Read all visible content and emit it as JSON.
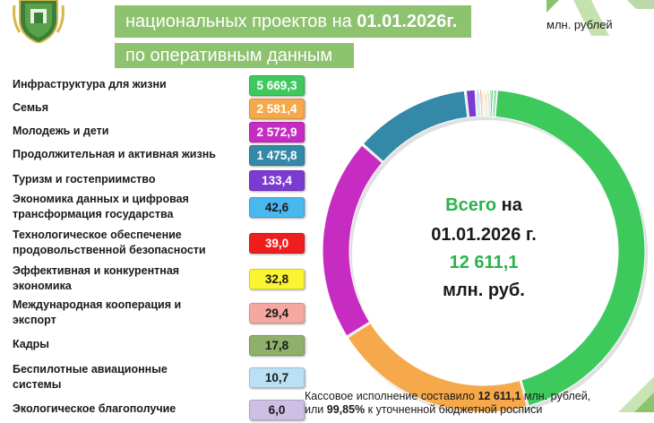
{
  "title": {
    "line1_prefix": "национальных проектов на",
    "line1_date": "01.01.2026г.",
    "line2": "по оперативным данным"
  },
  "unit_label": "млн. рублей",
  "center": {
    "word1": "Всего",
    "word2": "на",
    "date": "01.01.2026 г.",
    "total": "12 611,1",
    "unit": "млн. руб."
  },
  "footnote": {
    "line1_a": "Кассовое исполнение составило",
    "line1_b": "12 611,1",
    "line1_c": "млн. рублей,",
    "line2_a": "или",
    "line2_b": "99,85%",
    "line2_c": "к уточненной бюджетной росписи"
  },
  "chart_data": {
    "type": "pie",
    "subtype": "donut",
    "unit": "млн. рублей",
    "total": 12611.1,
    "series": [
      {
        "label_lines": [
          "Инфраструктура для жизни"
        ],
        "value": 5669.3,
        "value_label": "5 669,3",
        "color": "#3ec95d",
        "text_color": "#ffffff"
      },
      {
        "label_lines": [
          "Семья"
        ],
        "value": 2581.4,
        "value_label": "2 581,4",
        "color": "#f5a94a",
        "text_color": "#ffffff"
      },
      {
        "label_lines": [
          "Молодежь и дети"
        ],
        "value": 2572.9,
        "value_label": "2 572,9",
        "color": "#c72cc2",
        "text_color": "#ffffff"
      },
      {
        "label_lines": [
          "Продолжительная и активная жизнь"
        ],
        "value": 1475.8,
        "value_label": "1 475,8",
        "color": "#3489a8",
        "text_color": "#ffffff"
      },
      {
        "label_lines": [
          "Туризм и гостеприимство"
        ],
        "value": 133.4,
        "value_label": "133,4",
        "color": "#7b3bd1",
        "text_color": "#ffffff"
      },
      {
        "label_lines": [
          "Экономика данных и цифровая",
          "трансформация государства"
        ],
        "value": 42.6,
        "value_label": "42,6",
        "color": "#49b8ef",
        "text_color": "#1a1a1a"
      },
      {
        "label_lines": [
          "Технологическое обеспечение",
          "продовольственной безопасности"
        ],
        "value": 39.0,
        "value_label": "39,0",
        "color": "#f01d1d",
        "text_color": "#ffffff"
      },
      {
        "label_lines": [
          "Эффективная и конкурентная",
          "экономика"
        ],
        "value": 32.8,
        "value_label": "32,8",
        "color": "#fbf430",
        "text_color": "#1a1a1a"
      },
      {
        "label_lines": [
          "Международная кооперация и",
          "экспорт"
        ],
        "value": 29.4,
        "value_label": "29,4",
        "color": "#f5a8a0",
        "text_color": "#1a1a1a"
      },
      {
        "label_lines": [
          "Кадры"
        ],
        "value": 17.8,
        "value_label": "17,8",
        "color": "#8fb06a",
        "text_color": "#1a1a1a"
      },
      {
        "label_lines": [
          "Беспилотные авиационные",
          "системы"
        ],
        "value": 10.7,
        "value_label": "10,7",
        "color": "#b9e0f5",
        "text_color": "#1a1a1a"
      },
      {
        "label_lines": [
          "Экологическое благополучие"
        ],
        "value": 6.0,
        "value_label": "6,0",
        "color": "#cdbfe6",
        "text_color": "#1a1a1a"
      }
    ]
  }
}
